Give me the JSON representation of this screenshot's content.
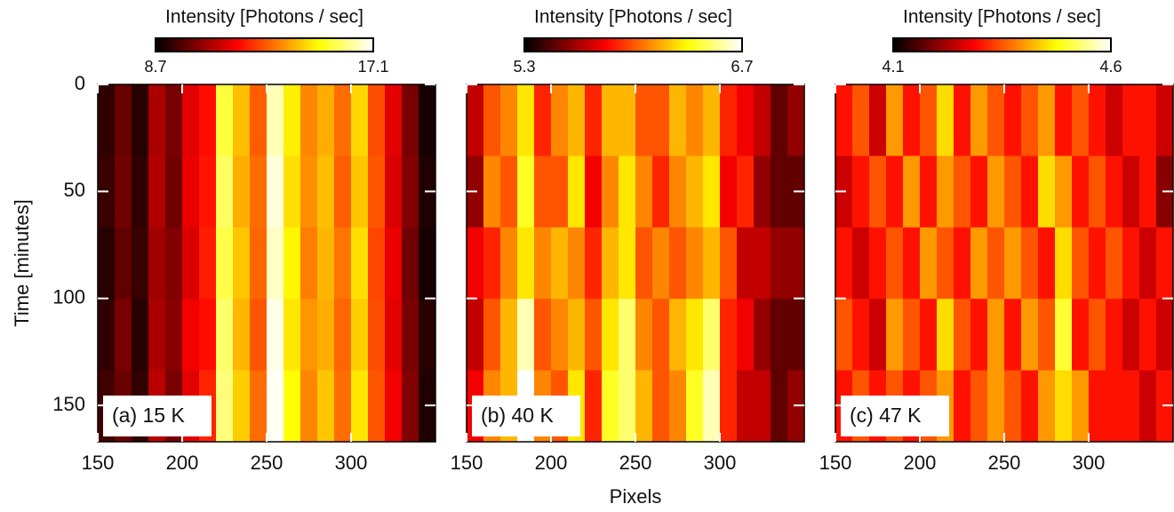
{
  "chart_data": [
    {
      "type": "heatmap",
      "colorbar_title": "Intensity [Photons / sec]",
      "colormap": "hot",
      "clim": [
        8.7,
        17.1
      ],
      "cticks": [
        8.7,
        17.1
      ],
      "panel_label": "(a) 15 K",
      "y_label": "Time [minutes]",
      "y_inverted": true,
      "xlim": [
        150,
        350
      ],
      "xticks": [
        150,
        200,
        250,
        300
      ],
      "ylim": [
        0,
        167
      ],
      "yticks": [
        0,
        50,
        100,
        150
      ],
      "values": [
        [
          9.3,
          10.0,
          9.2,
          10.8,
          10.2,
          11.5,
          12.0,
          15.5,
          14.2,
          13.0,
          16.5,
          14.8,
          13.5,
          14.0,
          13.2,
          14.5,
          12.8,
          11.5,
          10.2,
          9.0
        ],
        [
          9.4,
          10.1,
          9.3,
          10.9,
          10.1,
          11.6,
          12.1,
          15.8,
          14.0,
          13.2,
          16.8,
          14.6,
          13.6,
          14.2,
          13.0,
          14.3,
          12.9,
          11.4,
          10.3,
          9.1
        ],
        [
          9.2,
          9.9,
          9.4,
          10.7,
          10.3,
          11.4,
          12.2,
          15.6,
          14.3,
          13.1,
          16.6,
          14.9,
          13.4,
          14.1,
          13.3,
          14.6,
          12.7,
          11.6,
          10.1,
          9.0
        ],
        [
          9.3,
          10.2,
          9.2,
          10.8,
          10.4,
          11.7,
          12.0,
          15.9,
          14.1,
          12.9,
          16.9,
          14.7,
          13.7,
          14.0,
          13.1,
          14.4,
          12.8,
          11.5,
          10.2,
          9.2
        ],
        [
          9.5,
          10.0,
          9.3,
          11.0,
          10.2,
          11.5,
          12.3,
          16.0,
          14.4,
          13.2,
          17.0,
          15.0,
          13.5,
          14.3,
          13.2,
          14.7,
          12.9,
          11.7,
          10.3,
          9.1
        ]
      ]
    },
    {
      "type": "heatmap",
      "colorbar_title": "Intensity [Photons / sec]",
      "colormap": "hot",
      "clim": [
        5.3,
        6.7
      ],
      "cticks": [
        5.3,
        6.7
      ],
      "panel_label": "(b) 40 K",
      "x_label": "Pixels",
      "y_inverted": true,
      "xlim": [
        150,
        350
      ],
      "xticks": [
        150,
        200,
        250,
        300
      ],
      "ylim": [
        0,
        167
      ],
      "values": [
        [
          5.7,
          6.0,
          6.1,
          6.3,
          5.9,
          6.1,
          6.2,
          5.9,
          6.2,
          6.2,
          6.0,
          6.0,
          6.2,
          6.1,
          6.2,
          5.9,
          5.8,
          5.7,
          5.5,
          5.6
        ],
        [
          5.6,
          6.1,
          6.0,
          6.4,
          6.0,
          6.0,
          6.3,
          5.8,
          6.1,
          6.3,
          6.1,
          5.9,
          6.1,
          6.2,
          6.3,
          5.8,
          5.9,
          5.6,
          5.5,
          5.5
        ],
        [
          5.8,
          5.9,
          6.1,
          6.3,
          6.1,
          6.2,
          6.1,
          5.9,
          6.2,
          6.3,
          6.0,
          6.1,
          6.0,
          6.1,
          6.2,
          6.0,
          5.7,
          5.7,
          5.6,
          5.6
        ],
        [
          5.7,
          6.0,
          6.2,
          6.6,
          6.0,
          6.1,
          6.2,
          6.0,
          6.3,
          6.5,
          6.1,
          6.0,
          6.2,
          6.3,
          6.5,
          5.9,
          5.8,
          5.6,
          5.5,
          5.5
        ],
        [
          5.8,
          6.1,
          6.2,
          6.7,
          6.1,
          6.0,
          6.3,
          5.9,
          6.4,
          6.5,
          6.2,
          6.0,
          6.1,
          6.4,
          6.6,
          5.9,
          5.7,
          5.7,
          5.5,
          5.6
        ]
      ]
    },
    {
      "type": "heatmap",
      "colorbar_title": "Intensity [Photons / sec]",
      "colormap": "hot",
      "clim": [
        4.1,
        4.6
      ],
      "cticks": [
        4.1,
        4.6
      ],
      "panel_label": "(c) 47 K",
      "y_inverted": true,
      "xlim": [
        150,
        350
      ],
      "xticks": [
        150,
        200,
        250,
        300
      ],
      "ylim": [
        0,
        167
      ],
      "values": [
        [
          4.3,
          4.35,
          4.25,
          4.4,
          4.3,
          4.35,
          4.45,
          4.3,
          4.4,
          4.35,
          4.3,
          4.35,
          4.4,
          4.3,
          4.35,
          4.3,
          4.25,
          4.3,
          4.3,
          4.25
        ],
        [
          4.25,
          4.3,
          4.35,
          4.3,
          4.4,
          4.3,
          4.4,
          4.35,
          4.3,
          4.4,
          4.35,
          4.3,
          4.45,
          4.4,
          4.3,
          4.35,
          4.3,
          4.25,
          4.3,
          4.2
        ],
        [
          4.3,
          4.25,
          4.3,
          4.35,
          4.3,
          4.4,
          4.35,
          4.3,
          4.4,
          4.35,
          4.4,
          4.35,
          4.3,
          4.45,
          4.35,
          4.3,
          4.35,
          4.3,
          4.25,
          4.3
        ],
        [
          4.35,
          4.3,
          4.25,
          4.4,
          4.35,
          4.3,
          4.45,
          4.35,
          4.3,
          4.4,
          4.3,
          4.4,
          4.35,
          4.5,
          4.3,
          4.35,
          4.3,
          4.25,
          4.3,
          4.25
        ],
        [
          4.3,
          4.35,
          4.3,
          4.35,
          4.3,
          4.35,
          4.4,
          4.3,
          4.35,
          4.4,
          4.35,
          4.3,
          4.4,
          4.45,
          4.4,
          4.3,
          4.3,
          4.3,
          4.25,
          4.3
        ]
      ]
    }
  ]
}
